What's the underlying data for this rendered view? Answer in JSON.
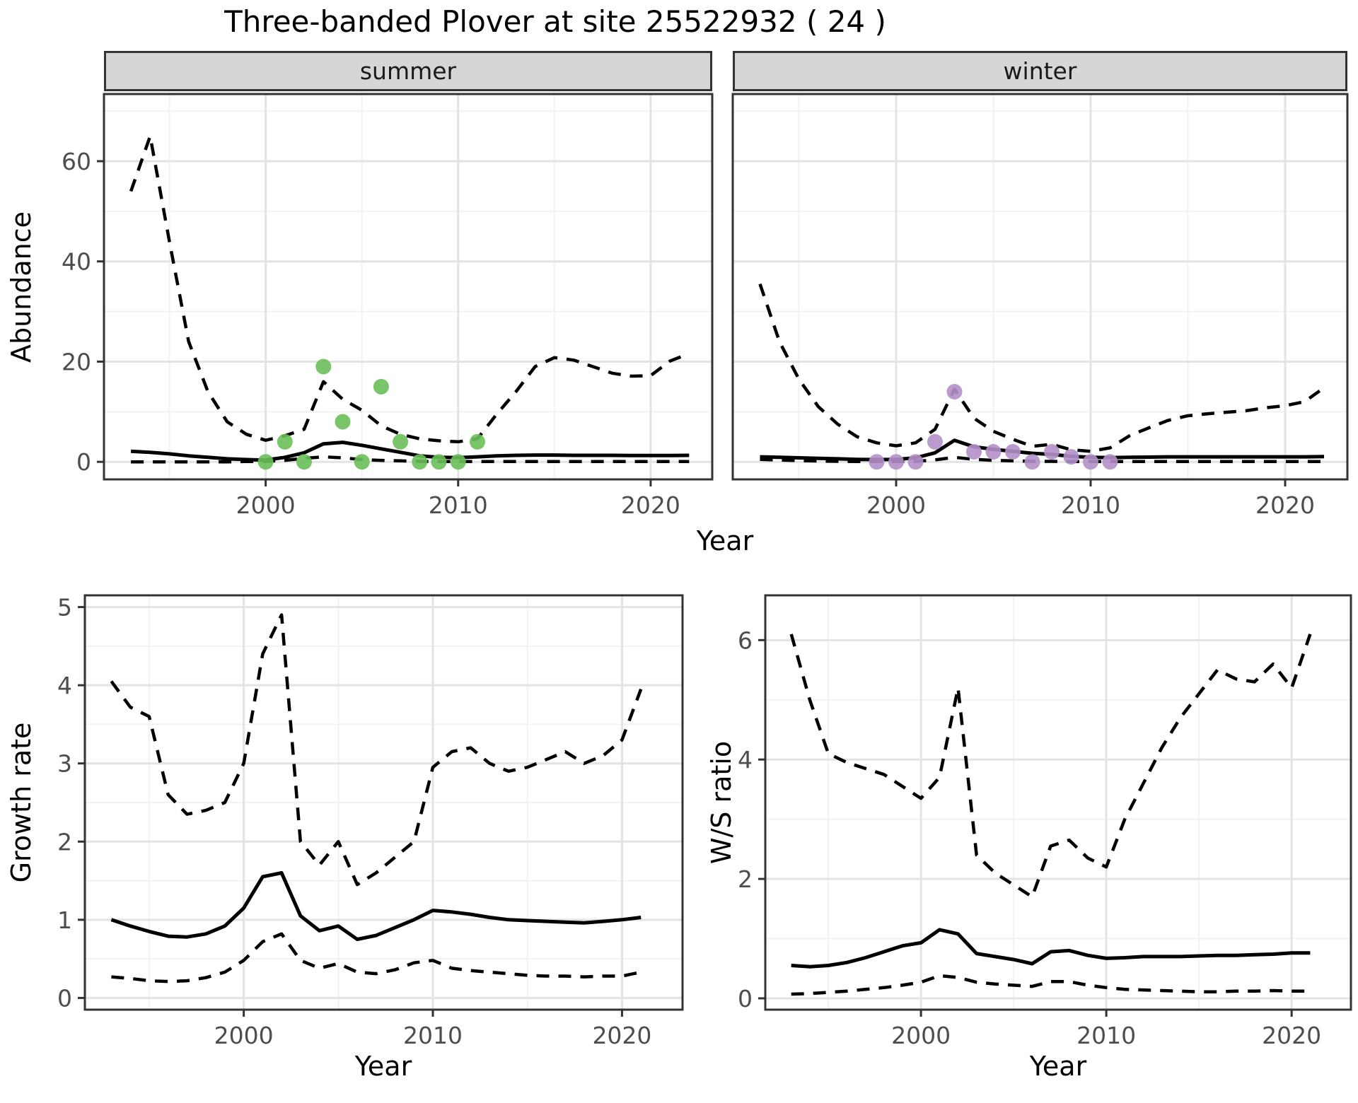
{
  "title": "Three-banded Plover at site 25522932 ( 24 )",
  "chart_data": {
    "type": "line",
    "title": "Three-banded Plover at site 25522932 ( 24 )",
    "legend_position": "none",
    "grid": "on",
    "top_row": {
      "ylabel": "Abundance",
      "xlabel": "Year",
      "facets": [
        "summer",
        "winter"
      ]
    },
    "colors": {
      "summer_points": "#6abf59",
      "winter_points": "#b48fc9",
      "lines": "#000000"
    },
    "charts": [
      {
        "key": "summer",
        "facet": "summer",
        "xlim": [
          1991.6,
          2023.2
        ],
        "ylim": [
          -3.5,
          73.4
        ],
        "x_ticks": [
          2000,
          2010,
          2020
        ],
        "x_minor": [
          1995,
          2005,
          2015
        ],
        "y_ticks": [
          0,
          20,
          40,
          60
        ],
        "y_minor": [
          10,
          30,
          50,
          70
        ],
        "years": [
          1993,
          1994,
          1995,
          1996,
          1997,
          1998,
          1999,
          2000,
          2001,
          2002,
          2003,
          2004,
          2005,
          2006,
          2007,
          2008,
          2009,
          2010,
          2011,
          2012,
          2013,
          2014,
          2015,
          2016,
          2017,
          2018,
          2019,
          2020,
          2021,
          2022
        ],
        "series": [
          {
            "name": "fit",
            "style": "solid",
            "values": [
              2.1,
              1.9,
              1.6,
              1.2,
              0.9,
              0.6,
              0.45,
              0.35,
              0.9,
              1.8,
              3.6,
              3.9,
              3.3,
              2.6,
              1.9,
              1.2,
              0.9,
              0.85,
              1.0,
              1.2,
              1.3,
              1.35,
              1.35,
              1.3,
              1.3,
              1.3,
              1.25,
              1.25,
              1.25,
              1.3
            ]
          },
          {
            "name": "upper_ci",
            "style": "dashed",
            "values": [
              54,
              65,
              44,
              24,
              14,
              8,
              5.5,
              4.3,
              5.2,
              6.5,
              16,
              12.5,
              10.3,
              7.2,
              5.5,
              4.6,
              4.2,
              4.0,
              4.6,
              9.5,
              14,
              19,
              20.8,
              20.3,
              19,
              17.7,
              17.1,
              17.2,
              20.1,
              21.6
            ]
          },
          {
            "name": "lower_ci",
            "style": "dashed",
            "values": [
              0,
              0,
              0,
              0,
              0,
              0,
              0.05,
              0.1,
              0.3,
              0.7,
              1.0,
              0.8,
              0.45,
              0.3,
              0.2,
              0.1,
              0.05,
              0.05,
              0.05,
              0.05,
              0.05,
              0.05,
              0.05,
              0.05,
              0.05,
              0.05,
              0.05,
              0.05,
              0.05,
              0.05
            ]
          }
        ],
        "point_color": "#6abf59",
        "obs_points": [
          [
            2000,
            0
          ],
          [
            2001,
            4
          ],
          [
            2002,
            0
          ],
          [
            2003,
            19
          ],
          [
            2004,
            8
          ],
          [
            2005,
            0
          ],
          [
            2006,
            15
          ],
          [
            2007,
            4
          ],
          [
            2008,
            0
          ],
          [
            2009,
            0
          ],
          [
            2010,
            0
          ],
          [
            2011,
            4
          ]
        ]
      },
      {
        "key": "winter",
        "facet": "winter",
        "xlim": [
          1991.6,
          2023.2
        ],
        "ylim": [
          -3.5,
          73.4
        ],
        "x_ticks": [
          2000,
          2010,
          2020
        ],
        "x_minor": [
          1995,
          2005,
          2015
        ],
        "y_ticks": [
          0,
          20,
          40,
          60
        ],
        "y_minor": [
          10,
          30,
          50,
          70
        ],
        "years": [
          1993,
          1994,
          1995,
          1996,
          1997,
          1998,
          1999,
          2000,
          2001,
          2002,
          2003,
          2004,
          2005,
          2006,
          2007,
          2008,
          2009,
          2010,
          2011,
          2012,
          2013,
          2014,
          2015,
          2016,
          2017,
          2018,
          2019,
          2020,
          2021,
          2022
        ],
        "series": [
          {
            "name": "fit",
            "style": "solid",
            "values": [
              1.0,
              0.9,
              0.8,
              0.7,
              0.6,
              0.5,
              0.45,
              0.5,
              0.8,
              1.8,
              4.3,
              3.0,
              2.5,
              2.1,
              1.7,
              1.5,
              1.1,
              0.9,
              0.85,
              0.9,
              0.95,
              1.0,
              1.0,
              1.0,
              1.0,
              1.0,
              1.0,
              1.0,
              1.0,
              1.05
            ]
          },
          {
            "name": "upper_ci",
            "style": "dashed",
            "values": [
              35.5,
              24,
              16.5,
              11,
              7.5,
              5,
              3.8,
              3.2,
              3.8,
              6.5,
              14.5,
              8.7,
              6.1,
              4.5,
              3.1,
              3.5,
              2.4,
              2.1,
              2.8,
              5.2,
              6.8,
              8.3,
              9.2,
              9.6,
              9.9,
              10.2,
              10.8,
              11.2,
              12.0,
              14.8
            ]
          },
          {
            "name": "lower_ci",
            "style": "dashed",
            "values": [
              0.5,
              0.35,
              0.25,
              0.15,
              0.1,
              0.05,
              0.05,
              0.05,
              0.1,
              0.4,
              0.9,
              0.5,
              0.3,
              0.2,
              0.1,
              0.1,
              0.05,
              0.05,
              0.05,
              0.05,
              0.05,
              0.05,
              0.05,
              0.05,
              0.05,
              0.05,
              0.05,
              0.05,
              0.05,
              0.05
            ]
          }
        ],
        "point_color": "#b48fc9",
        "obs_points": [
          [
            1999,
            0
          ],
          [
            2000,
            0
          ],
          [
            2001,
            0
          ],
          [
            2002,
            4
          ],
          [
            2003,
            14
          ],
          [
            2004,
            2
          ],
          [
            2005,
            2
          ],
          [
            2006,
            2
          ],
          [
            2007,
            0
          ],
          [
            2008,
            2
          ],
          [
            2009,
            1
          ],
          [
            2010,
            0
          ],
          [
            2011,
            0
          ]
        ]
      },
      {
        "key": "growth",
        "ylabel": "Growth rate",
        "xlabel": "Year",
        "xlim": [
          1991.6,
          2023.2
        ],
        "ylim": [
          -0.15,
          5.15
        ],
        "x_ticks": [
          2000,
          2010,
          2020
        ],
        "x_minor": [
          1995,
          2005,
          2015
        ],
        "y_ticks": [
          0,
          1,
          2,
          3,
          4,
          5
        ],
        "y_minor": [
          0.5,
          1.5,
          2.5,
          3.5,
          4.5
        ],
        "years": [
          1993,
          1994,
          1995,
          1996,
          1997,
          1998,
          1999,
          2000,
          2001,
          2002,
          2003,
          2004,
          2005,
          2006,
          2007,
          2008,
          2009,
          2010,
          2011,
          2012,
          2013,
          2014,
          2015,
          2016,
          2017,
          2018,
          2019,
          2020,
          2021
        ],
        "series": [
          {
            "name": "fit",
            "style": "solid",
            "values": [
              1.0,
              0.92,
              0.85,
              0.79,
              0.78,
              0.82,
              0.92,
              1.15,
              1.55,
              1.6,
              1.05,
              0.86,
              0.92,
              0.75,
              0.8,
              0.9,
              1.0,
              1.12,
              1.1,
              1.07,
              1.03,
              1.0,
              0.99,
              0.98,
              0.97,
              0.96,
              0.98,
              1.0,
              1.03
            ]
          },
          {
            "name": "upper_ci",
            "style": "dashed",
            "values": [
              4.05,
              3.72,
              3.6,
              2.6,
              2.35,
              2.4,
              2.5,
              3.0,
              4.4,
              4.9,
              2.0,
              1.7,
              2.0,
              1.45,
              1.6,
              1.8,
              2.0,
              2.95,
              3.15,
              3.2,
              3.0,
              2.9,
              2.95,
              3.05,
              3.15,
              3.0,
              3.1,
              3.3,
              3.95
            ]
          },
          {
            "name": "lower_ci",
            "style": "dashed",
            "values": [
              0.27,
              0.25,
              0.22,
              0.21,
              0.22,
              0.26,
              0.33,
              0.48,
              0.72,
              0.82,
              0.48,
              0.38,
              0.44,
              0.33,
              0.31,
              0.36,
              0.45,
              0.48,
              0.38,
              0.35,
              0.33,
              0.31,
              0.29,
              0.28,
              0.28,
              0.27,
              0.28,
              0.28,
              0.33
            ]
          }
        ],
        "point_color": null,
        "obs_points": []
      },
      {
        "key": "ws",
        "ylabel": "W/S ratio",
        "xlabel": "Year",
        "xlim": [
          1991.6,
          2023.2
        ],
        "ylim": [
          -0.19,
          6.75
        ],
        "x_ticks": [
          2000,
          2010,
          2020
        ],
        "x_minor": [
          1995,
          2005,
          2015
        ],
        "y_ticks": [
          0,
          2,
          4,
          6
        ],
        "y_minor": [
          1,
          3,
          5
        ],
        "years": [
          1993,
          1994,
          1995,
          1996,
          1997,
          1998,
          1999,
          2000,
          2001,
          2002,
          2003,
          2004,
          2005,
          2006,
          2007,
          2008,
          2009,
          2010,
          2011,
          2012,
          2013,
          2014,
          2015,
          2016,
          2017,
          2018,
          2019,
          2020,
          2021
        ],
        "series": [
          {
            "name": "fit",
            "style": "solid",
            "values": [
              0.55,
              0.53,
              0.55,
              0.6,
              0.68,
              0.78,
              0.88,
              0.93,
              1.15,
              1.08,
              0.75,
              0.7,
              0.65,
              0.58,
              0.78,
              0.8,
              0.72,
              0.67,
              0.68,
              0.7,
              0.7,
              0.7,
              0.71,
              0.72,
              0.72,
              0.73,
              0.74,
              0.76,
              0.76
            ]
          },
          {
            "name": "upper_ci",
            "style": "dashed",
            "values": [
              6.1,
              5.0,
              4.1,
              3.95,
              3.85,
              3.75,
              3.55,
              3.35,
              3.7,
              5.2,
              2.4,
              2.1,
              1.9,
              1.7,
              2.55,
              2.65,
              2.35,
              2.2,
              3.0,
              3.6,
              4.2,
              4.7,
              5.1,
              5.5,
              5.35,
              5.3,
              5.6,
              5.2,
              6.1
            ]
          },
          {
            "name": "lower_ci",
            "style": "dashed",
            "values": [
              0.07,
              0.08,
              0.1,
              0.12,
              0.15,
              0.18,
              0.22,
              0.27,
              0.38,
              0.35,
              0.27,
              0.24,
              0.22,
              0.2,
              0.28,
              0.28,
              0.22,
              0.18,
              0.15,
              0.14,
              0.13,
              0.12,
              0.11,
              0.11,
              0.12,
              0.12,
              0.13,
              0.12,
              0.12
            ]
          }
        ],
        "point_color": null,
        "obs_points": []
      }
    ]
  }
}
